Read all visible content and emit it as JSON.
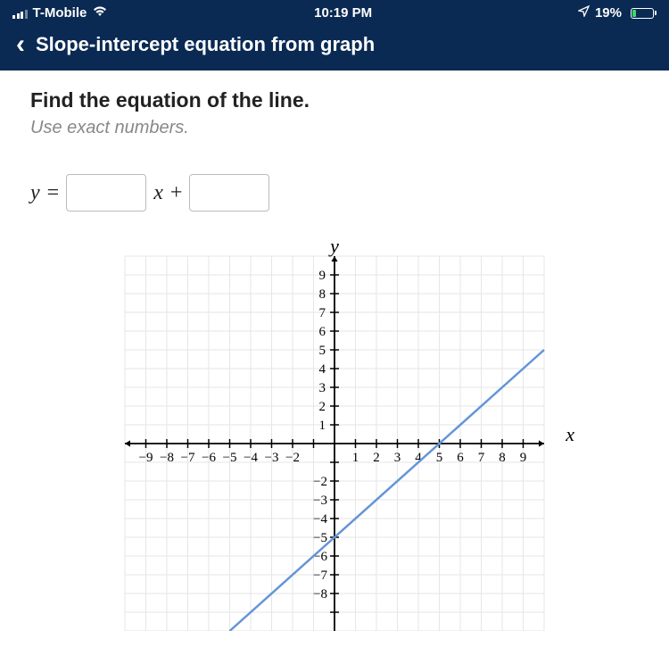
{
  "status": {
    "carrier": "T-Mobile",
    "time": "10:19 PM",
    "battery_pct": "19%"
  },
  "nav": {
    "title": "Slope-intercept equation from graph"
  },
  "prompt": {
    "main": "Find the equation of the line.",
    "hint": "Use exact numbers."
  },
  "equation": {
    "lhs": "y",
    "eq": "=",
    "var": "x",
    "plus": "+",
    "slope_value": "",
    "intercept_value": ""
  },
  "chart": {
    "type": "line",
    "xlim": [
      -10,
      10
    ],
    "ylim": [
      -10,
      10
    ],
    "tick_step": 1,
    "x_ticks_neg": [
      -9,
      -8,
      -7,
      -6,
      -5,
      -4,
      -3,
      -2
    ],
    "x_ticks_pos": [
      1,
      2,
      3,
      4,
      5,
      6,
      7,
      8,
      9
    ],
    "y_ticks_pos": [
      1,
      2,
      3,
      4,
      5,
      6,
      7,
      8,
      9
    ],
    "y_ticks_neg": [
      -2,
      -3,
      -4,
      -5,
      -6,
      -7,
      -8
    ],
    "grid_color": "#e6e6e6",
    "axis_color": "#000000",
    "line_color": "#6495d8",
    "line_width": 2.5,
    "background_color": "#ffffff",
    "tick_fontsize": 15,
    "x_axis_label": "x",
    "y_axis_label": "y",
    "line_points": [
      [
        -5,
        -10
      ],
      [
        10,
        5
      ]
    ],
    "slope": 1,
    "y_intercept": -5
  },
  "colors": {
    "nav_bg": "#0a2a53",
    "battery_fill": "#3cd964"
  }
}
